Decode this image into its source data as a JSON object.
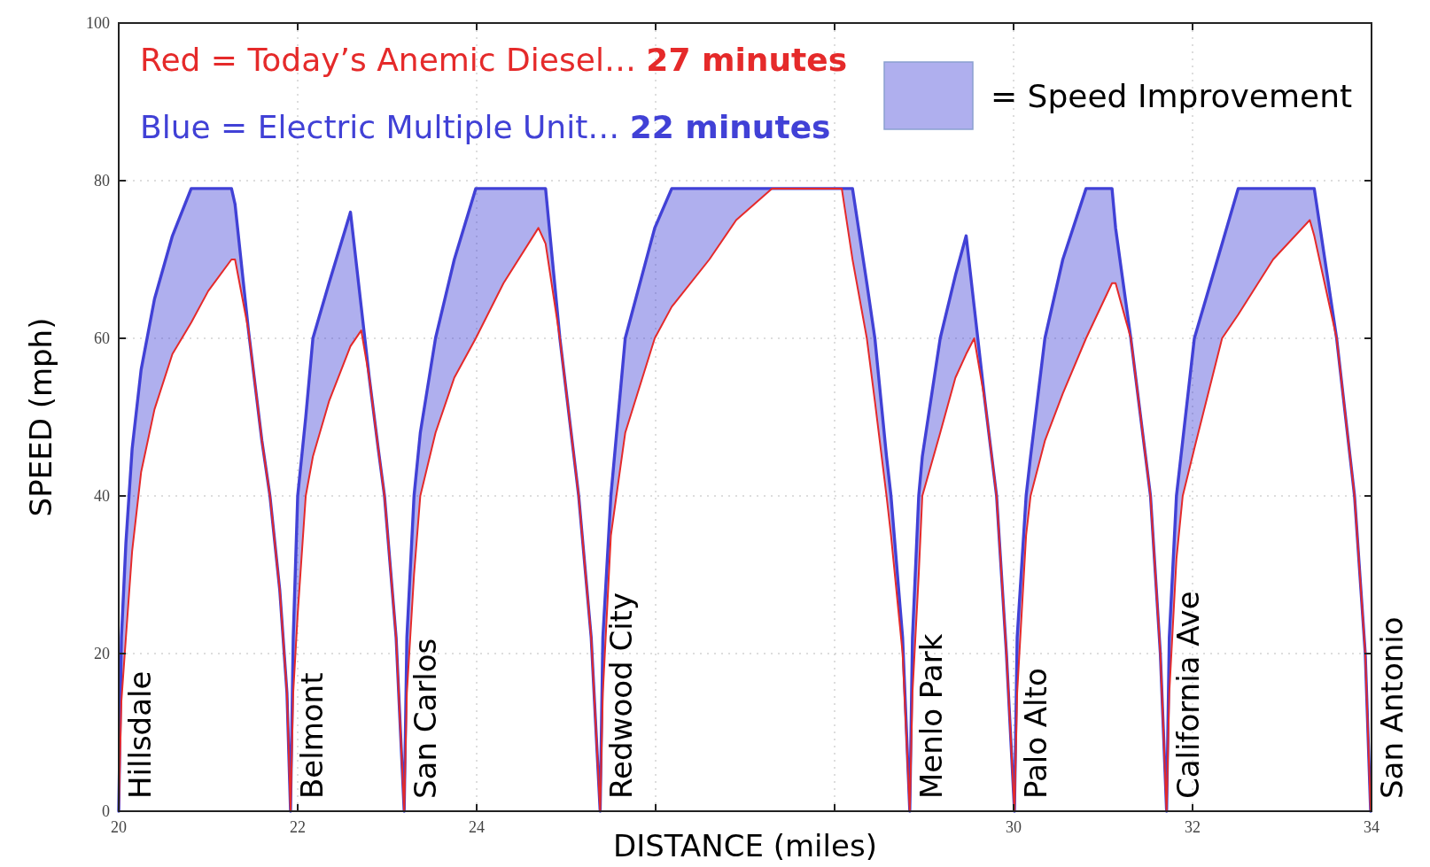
{
  "chart_data": {
    "type": "line",
    "xlabel": "DISTANCE (miles)",
    "ylabel": "SPEED (mph)",
    "legend_title": "= Speed Improvement",
    "xlim": [
      20,
      34
    ],
    "ylim": [
      0,
      100
    ],
    "xticks": [
      20,
      22,
      24,
      {
        "value": 26,
        "label": null
      },
      {
        "value": 28,
        "label": null
      },
      30,
      32,
      34
    ],
    "yticks": [
      0,
      20,
      40,
      60,
      80,
      100
    ],
    "grid": true,
    "line_style": "solid",
    "x": [
      20.0,
      20.03,
      20.08,
      20.15,
      20.25,
      20.4,
      20.6,
      20.81,
      21.0,
      21.26,
      21.3,
      21.45,
      21.6,
      21.69,
      21.8,
      21.88,
      21.92,
      21.95,
      22.0,
      22.09,
      22.17,
      22.35,
      22.59,
      22.71,
      22.8,
      22.9,
      22.97,
      23.1,
      23.19,
      23.22,
      23.3,
      23.37,
      23.54,
      23.75,
      23.99,
      24.3,
      24.69,
      24.77,
      24.93,
      25.14,
      25.28,
      25.38,
      25.41,
      25.5,
      25.66,
      25.99,
      26.18,
      26.6,
      26.9,
      27.3,
      28.08,
      28.2,
      28.36,
      28.45,
      28.58,
      28.63,
      28.76,
      28.84,
      28.87,
      28.94,
      28.98,
      29.18,
      29.35,
      29.47,
      29.56,
      29.68,
      29.81,
      29.92,
      30.01,
      30.04,
      30.14,
      30.19,
      30.35,
      30.55,
      30.81,
      31.1,
      31.14,
      31.31,
      31.53,
      31.64,
      31.71,
      31.74,
      31.82,
      31.89,
      32.02,
      32.33,
      32.51,
      32.9,
      33.31,
      33.36,
      33.61,
      33.81,
      33.93,
      33.99
    ],
    "series": [
      {
        "color": "#e52a2a",
        "values": [
          0,
          14,
          22,
          33,
          43,
          51,
          58,
          62,
          66,
          70,
          70,
          61,
          47,
          40,
          28,
          15,
          0,
          15,
          25,
          40,
          45,
          52,
          59,
          61,
          55,
          46,
          40,
          22,
          0,
          15,
          30,
          40,
          48,
          55,
          60,
          67,
          74,
          72,
          60,
          40,
          22,
          0,
          15,
          35,
          48,
          60,
          64,
          70,
          75,
          79,
          79,
          70,
          60,
          52,
          40,
          35,
          20,
          0,
          15,
          30,
          40,
          48,
          55,
          58,
          60,
          52,
          40,
          20,
          0,
          15,
          35,
          40,
          47,
          53,
          60,
          67,
          67,
          60,
          40,
          20,
          0,
          15,
          32,
          40,
          46,
          60,
          63,
          70,
          75,
          73,
          60,
          40,
          20,
          0
        ]
      },
      {
        "color": "#4141d6",
        "values": [
          0,
          22,
          34,
          46,
          56,
          65,
          73,
          79,
          79,
          79,
          77,
          61,
          47,
          40,
          28,
          15,
          0,
          22,
          40,
          50,
          60,
          67,
          76,
          64,
          55,
          46,
          40,
          22,
          0,
          22,
          40,
          48,
          60,
          70,
          79,
          79,
          79,
          79,
          60,
          40,
          22,
          0,
          22,
          40,
          60,
          74,
          79,
          79,
          79,
          79,
          79,
          79,
          67,
          60,
          45,
          40,
          22,
          0,
          22,
          40,
          45,
          60,
          68,
          73,
          64,
          52,
          40,
          20,
          0,
          22,
          40,
          45,
          60,
          70,
          79,
          79,
          74,
          60,
          40,
          20,
          0,
          22,
          40,
          47,
          60,
          72,
          79,
          79,
          79,
          79,
          60,
          40,
          20,
          0
        ],
        "lower": [
          0,
          14,
          22,
          33,
          43,
          51,
          58,
          62,
          66,
          70,
          70,
          61,
          47,
          40,
          28,
          15,
          0,
          15,
          25,
          40,
          45,
          52,
          59,
          61,
          55,
          46,
          40,
          22,
          0,
          15,
          30,
          40,
          48,
          55,
          60,
          67,
          74,
          72,
          60,
          40,
          22,
          0,
          15,
          35,
          48,
          60,
          64,
          70,
          75,
          79,
          79,
          70,
          60,
          52,
          40,
          35,
          20,
          0,
          15,
          30,
          40,
          48,
          55,
          58,
          60,
          52,
          40,
          20,
          0,
          15,
          35,
          40,
          47,
          53,
          60,
          67,
          67,
          60,
          40,
          20,
          0,
          15,
          32,
          40,
          46,
          60,
          63,
          70,
          75,
          73,
          60,
          40,
          20,
          0
        ],
        "upper": [
          0,
          22,
          34,
          46,
          56,
          65,
          73,
          79,
          79,
          79,
          77,
          61,
          47,
          40,
          28,
          15,
          0,
          22,
          40,
          50,
          60,
          67,
          76,
          64,
          55,
          46,
          40,
          22,
          0,
          22,
          40,
          48,
          60,
          70,
          79,
          79,
          79,
          79,
          60,
          40,
          22,
          0,
          22,
          40,
          60,
          74,
          79,
          79,
          79,
          79,
          79,
          79,
          67,
          60,
          45,
          40,
          22,
          0,
          22,
          40,
          45,
          60,
          68,
          73,
          64,
          52,
          40,
          20,
          0,
          22,
          40,
          45,
          60,
          70,
          79,
          79,
          74,
          60,
          40,
          20,
          0,
          22,
          40,
          47,
          60,
          72,
          79,
          79,
          79,
          79,
          60,
          40,
          20,
          0
        ]
      }
    ],
    "annotations": [
      "Red = Today’s Anemic Diesel… ",
      "27 minutes",
      "Blue = Electric Multiple Unit… ",
      "22 minutes",
      {
        "text": "Hillsdale",
        "x": 20,
        "y": 0
      },
      {
        "text": "Belmont",
        "x": 21.92,
        "y": 0
      },
      {
        "text": "San Carlos",
        "x": 23.19,
        "y": 0
      },
      {
        "text": "Redwood City",
        "x": 25.38,
        "y": 0
      },
      {
        "text": "Menlo Park",
        "x": 28.84,
        "y": 0
      },
      {
        "text": "Palo Alto",
        "x": 30.01,
        "y": 0
      },
      {
        "text": "California Ave",
        "x": 31.71,
        "y": 0
      },
      {
        "text": "San Antonio",
        "x": 33.99,
        "y": 0
      }
    ]
  }
}
